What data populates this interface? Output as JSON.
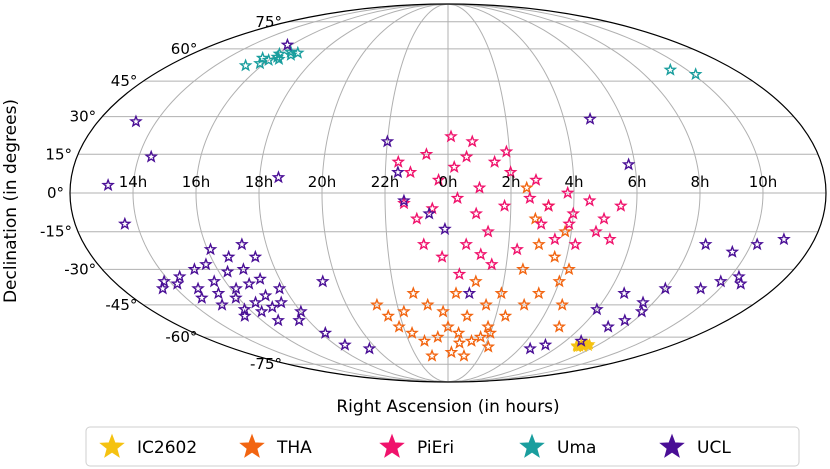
{
  "chart_data": {
    "type": "scatter",
    "projection": "mollweide",
    "xlabel": "Right Ascension (in hours)",
    "ylabel": "Declination (in degrees)",
    "ra_tick_labels": [
      {
        "ra": 14,
        "label": "14h"
      },
      {
        "ra": 16,
        "label": "16h"
      },
      {
        "ra": 18,
        "label": "18h"
      },
      {
        "ra": 20,
        "label": "20h"
      },
      {
        "ra": 22,
        "label": "22h"
      },
      {
        "ra": 0,
        "label": "0h"
      },
      {
        "ra": 2,
        "label": "2h"
      },
      {
        "ra": 4,
        "label": "4h"
      },
      {
        "ra": 6,
        "label": "6h"
      },
      {
        "ra": 8,
        "label": "8h"
      },
      {
        "ra": 10,
        "label": "10h"
      }
    ],
    "dec_tick_labels": [
      {
        "dec": 75,
        "label": "75°"
      },
      {
        "dec": 60,
        "label": "60°"
      },
      {
        "dec": 45,
        "label": "45°"
      },
      {
        "dec": 30,
        "label": "30°"
      },
      {
        "dec": 15,
        "label": "15°"
      },
      {
        "dec": 0,
        "label": "0°"
      },
      {
        "dec": -15,
        "label": "-15°"
      },
      {
        "dec": -30,
        "label": "-30°"
      },
      {
        "dec": -45,
        "label": "-45°"
      },
      {
        "dec": -60,
        "label": "-60°"
      },
      {
        "dec": -75,
        "label": "-75°"
      }
    ],
    "grid": true,
    "legend_position": "bottom",
    "series": [
      {
        "name": "IC2602",
        "color": "#f5c211",
        "marker": "filled-star",
        "points": [
          [
            7.2,
            -64.4
          ],
          [
            7.3,
            -64.6
          ],
          [
            7.1,
            -64.0
          ],
          [
            7.4,
            -65.0
          ],
          [
            7.2,
            -63.8
          ],
          [
            7.5,
            -64.2
          ],
          [
            7.0,
            -64.8
          ],
          [
            7.3,
            -63.6
          ],
          [
            7.6,
            -64.6
          ],
          [
            7.1,
            -65.2
          ],
          [
            7.4,
            -63.9
          ],
          [
            7.2,
            -65.0
          ],
          [
            7.5,
            -63.7
          ],
          [
            6.9,
            -64.3
          ],
          [
            7.3,
            -64.1
          ]
        ]
      },
      {
        "name": "THA",
        "color": "#f26511",
        "marker": "open-star",
        "points": [
          [
            1.2,
            -62.0
          ],
          [
            0.5,
            -58.0
          ],
          [
            0.0,
            -55.0
          ],
          [
            23.5,
            -60.0
          ],
          [
            22.8,
            -62.0
          ],
          [
            22.3,
            -58.0
          ],
          [
            21.8,
            -55.0
          ],
          [
            1.8,
            -55.0
          ],
          [
            2.4,
            -50.0
          ],
          [
            3.0,
            -45.0
          ],
          [
            3.4,
            -40.0
          ],
          [
            4.0,
            -35.0
          ],
          [
            4.2,
            -30.0
          ],
          [
            3.6,
            -25.0
          ],
          [
            3.0,
            -20.0
          ],
          [
            2.6,
            -30.0
          ],
          [
            2.0,
            -40.0
          ],
          [
            1.5,
            -45.0
          ],
          [
            0.8,
            -50.0
          ],
          [
            23.8,
            -48.0
          ],
          [
            23.2,
            -45.0
          ],
          [
            22.7,
            -40.0
          ],
          [
            22.2,
            -48.0
          ],
          [
            1.0,
            -35.0
          ],
          [
            0.3,
            -40.0
          ],
          [
            2.8,
            -10.0
          ],
          [
            3.2,
            -5.0
          ],
          [
            2.5,
            2.0
          ],
          [
            3.8,
            -15.0
          ],
          [
            4.5,
            -45.0
          ],
          [
            5.0,
            -55.0
          ],
          [
            0.2,
            -68.0
          ],
          [
            1.0,
            -70.0
          ],
          [
            23.0,
            -70.0
          ],
          [
            2.2,
            -65.0
          ],
          [
            1.6,
            -60.0
          ],
          [
            21.5,
            -50.0
          ],
          [
            21.2,
            -45.0
          ],
          [
            0.6,
            -63.0
          ],
          [
            2.0,
            -58.0
          ]
        ]
      },
      {
        "name": "PiEri",
        "color": "#f0136c",
        "marker": "open-star",
        "points": [
          [
            0.2,
            10.0
          ],
          [
            0.6,
            14.0
          ],
          [
            23.7,
            5.0
          ],
          [
            1.0,
            2.0
          ],
          [
            1.5,
            12.0
          ],
          [
            0.8,
            20.0
          ],
          [
            23.3,
            15.0
          ],
          [
            22.8,
            8.0
          ],
          [
            2.0,
            8.0
          ],
          [
            2.6,
            -2.0
          ],
          [
            3.2,
            -5.0
          ],
          [
            4.0,
            -8.0
          ],
          [
            4.5,
            -3.0
          ],
          [
            5.0,
            -10.0
          ],
          [
            5.3,
            -18.0
          ],
          [
            4.8,
            -15.0
          ],
          [
            3.8,
            0.0
          ],
          [
            3.0,
            -12.0
          ],
          [
            1.8,
            -5.0
          ],
          [
            0.9,
            -8.0
          ],
          [
            0.3,
            -2.0
          ],
          [
            23.5,
            -6.0
          ],
          [
            23.0,
            -10.0
          ],
          [
            22.6,
            -4.0
          ],
          [
            1.3,
            -15.0
          ],
          [
            0.6,
            -20.0
          ],
          [
            23.8,
            -25.0
          ],
          [
            23.2,
            -20.0
          ],
          [
            2.3,
            -22.0
          ],
          [
            1.5,
            -28.0
          ],
          [
            4.2,
            -20.0
          ],
          [
            0.1,
            22.0
          ],
          [
            1.9,
            16.0
          ],
          [
            2.8,
            5.0
          ],
          [
            3.5,
            -18.0
          ],
          [
            5.5,
            -5.0
          ],
          [
            22.4,
            12.0
          ],
          [
            0.4,
            -32.0
          ],
          [
            1.1,
            -24.0
          ],
          [
            3.9,
            -12.0
          ]
        ]
      },
      {
        "name": "Uma",
        "color": "#1a9e9e",
        "marker": "open-star",
        "points": [
          [
            16.2,
            56.0
          ],
          [
            16.4,
            55.0
          ],
          [
            16.7,
            57.0
          ],
          [
            16.0,
            54.5
          ],
          [
            15.8,
            53.0
          ],
          [
            15.3,
            52.0
          ],
          [
            16.9,
            58.0
          ],
          [
            16.5,
            58.5
          ],
          [
            15.6,
            55.5
          ],
          [
            16.1,
            57.5
          ],
          [
            9.3,
            50.0
          ],
          [
            10.1,
            48.0
          ]
        ]
      },
      {
        "name": "UCL",
        "color": "#4a0f96",
        "marker": "open-star",
        "points": [
          [
            15.4,
            -40.0
          ],
          [
            15.6,
            -35.0
          ],
          [
            15.9,
            -42.0
          ],
          [
            16.2,
            -38.0
          ],
          [
            16.5,
            -44.0
          ],
          [
            16.8,
            -36.0
          ],
          [
            17.1,
            -41.0
          ],
          [
            15.2,
            -30.0
          ],
          [
            15.7,
            -28.0
          ],
          [
            16.3,
            -31.0
          ],
          [
            16.9,
            -30.0
          ],
          [
            17.3,
            -34.0
          ],
          [
            17.0,
            -46.0
          ],
          [
            16.4,
            -48.0
          ],
          [
            15.8,
            -47.0
          ],
          [
            15.1,
            -45.0
          ],
          [
            14.8,
            -38.0
          ],
          [
            14.5,
            -33.0
          ],
          [
            14.2,
            -36.0
          ],
          [
            14.6,
            -42.0
          ],
          [
            17.5,
            -44.0
          ],
          [
            17.8,
            -38.0
          ],
          [
            18.0,
            -48.0
          ],
          [
            17.6,
            -52.0
          ],
          [
            16.6,
            -25.0
          ],
          [
            16.1,
            -22.0
          ],
          [
            17.2,
            -20.0
          ],
          [
            17.5,
            -25.0
          ],
          [
            15.5,
            -50.0
          ],
          [
            16.7,
            -52.0
          ],
          [
            13.8,
            -35.0
          ],
          [
            13.5,
            -38.0
          ],
          [
            19.5,
            -35.0
          ],
          [
            18.2,
            -58.0
          ],
          [
            18.5,
            -64.0
          ],
          [
            19.6,
            -66.0
          ],
          [
            22.0,
            20.0
          ],
          [
            18.6,
            6.0
          ],
          [
            13.3,
            28.0
          ],
          [
            13.6,
            -12.0
          ],
          [
            13.2,
            3.0
          ],
          [
            14.4,
            14.0
          ],
          [
            4.9,
            29.0
          ],
          [
            5.8,
            11.0
          ],
          [
            8.5,
            -20.0
          ],
          [
            9.5,
            -23.0
          ],
          [
            10.2,
            -20.0
          ],
          [
            11.0,
            -18.0
          ],
          [
            8.0,
            -38.0
          ],
          [
            6.6,
            -40.0
          ],
          [
            7.6,
            -44.0
          ],
          [
            7.9,
            -48.0
          ],
          [
            9.3,
            -38.0
          ],
          [
            9.8,
            -35.0
          ],
          [
            10.3,
            -33.0
          ],
          [
            10.6,
            -36.0
          ],
          [
            7.2,
            -55.0
          ],
          [
            7.6,
            -52.0
          ],
          [
            6.0,
            -47.0
          ],
          [
            5.2,
            -64.0
          ],
          [
            4.6,
            -66.0
          ],
          [
            6.8,
            -62.0
          ],
          [
            22.4,
            8.0
          ],
          [
            0.8,
            -40.0
          ],
          [
            23.4,
            -8.0
          ],
          [
            23.9,
            -14.0
          ],
          [
            15.8,
            62.0
          ],
          [
            22.6,
            -3.0
          ]
        ]
      }
    ]
  }
}
